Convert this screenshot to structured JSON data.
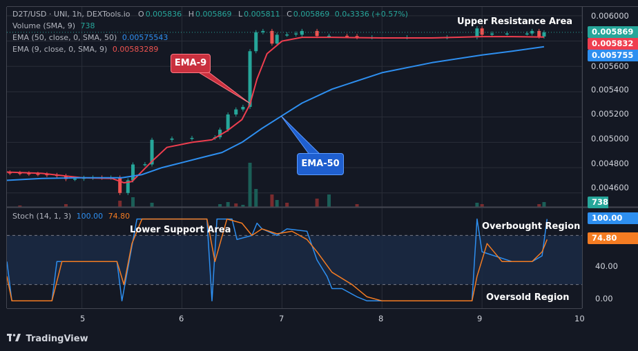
{
  "header": {
    "symbol": "D2T/USD · UNI, 1h, DEXTools.io",
    "o_label": "O",
    "o": "0.005836",
    "h_label": "H",
    "h": "0.005869",
    "l_label": "L",
    "l": "0.005811",
    "c_label": "C",
    "c": "0.005869",
    "chg": "0.0₄3336 (+0.57%)"
  },
  "legend": {
    "volume_label": "Volume (SMA, 9)",
    "volume_value": "738",
    "ema50_label": "EMA (50, close, 0, SMA, 50)",
    "ema50_value": "0.00575543",
    "ema9_label": "EMA (9, close, 0, SMA, 9)",
    "ema9_value": "0.00583289",
    "stoch_label": "Stoch (14, 1, 3)",
    "stoch_k": "100.00",
    "stoch_d": "74.80"
  },
  "annotations": {
    "upper_resistance": "Upper Resistance Area",
    "lower_support": "Lower Support Area",
    "overbought": "Overbought Region",
    "oversold": "Oversold Region",
    "ema9_callout": "EMA-9",
    "ema50_callout": "EMA-50"
  },
  "price_tags": {
    "last": "0.005869",
    "ema9": "0.005832",
    "ema50": "0.005755",
    "volume": "738",
    "stoch_k": "100.00",
    "stoch_d": "74.80"
  },
  "colors": {
    "bg": "#141823",
    "up": "#26a69a",
    "down": "#ef5350",
    "ema9": "#ef3e4f",
    "ema50": "#2e8ff0",
    "stoch_k": "#2e8ff0",
    "stoch_d": "#f57c22",
    "grid": "#2a2e39",
    "text": "#d1d4dc"
  },
  "footer": {
    "brand": "TradingView",
    "logo_icon": "tradingview-logo-icon"
  },
  "chart_data": [
    {
      "type": "candlestick",
      "title": "D2T/USD · UNI, 1h, DEXTools.io",
      "y_ticks": [
        "0.006000",
        "0.005800",
        "0.005600",
        "0.005400",
        "0.005200",
        "0.005000",
        "0.004800",
        "0.004600"
      ],
      "ylim": [
        0.00449,
        0.00607
      ],
      "x_ticks": [
        "5",
        "6",
        "7",
        "8",
        "9",
        "10"
      ],
      "xlim": [
        4.25,
        10.0
      ],
      "candles": [
        {
          "x": 4.28,
          "o": 0.004762,
          "c": 0.004758
        },
        {
          "x": 4.38,
          "o": 0.004758,
          "c": 0.004755
        },
        {
          "x": 4.47,
          "o": 0.004755,
          "c": 0.004751
        },
        {
          "x": 4.56,
          "o": 0.004751,
          "c": 0.004748
        },
        {
          "x": 4.65,
          "o": 0.004748,
          "c": 0.004742
        },
        {
          "x": 4.75,
          "o": 0.004742,
          "c": 0.004735
        },
        {
          "x": 4.84,
          "o": 0.004735,
          "c": 0.00471
        },
        {
          "x": 4.93,
          "o": 0.00471,
          "c": 0.004712
        },
        {
          "x": 5.02,
          "o": 0.004712,
          "c": 0.00472
        },
        {
          "x": 5.11,
          "o": 0.00472,
          "c": 0.004722
        },
        {
          "x": 5.2,
          "o": 0.004722,
          "c": 0.004721
        },
        {
          "x": 5.29,
          "o": 0.004721,
          "c": 0.004722
        },
        {
          "x": 5.38,
          "o": 0.004722,
          "c": 0.0046
        },
        {
          "x": 5.46,
          "o": 0.0046,
          "c": 0.0047
        },
        {
          "x": 5.51,
          "o": 0.0047,
          "c": 0.004825
        },
        {
          "x": 5.63,
          "o": 0.004825,
          "c": 0.004827
        },
        {
          "x": 5.7,
          "o": 0.004825,
          "c": 0.00502
        },
        {
          "x": 5.9,
          "o": 0.00502,
          "c": 0.00503
        },
        {
          "x": 6.1,
          "o": 0.00503,
          "c": 0.005035
        },
        {
          "x": 6.33,
          "o": 0.005035,
          "c": 0.00504
        },
        {
          "x": 6.38,
          "o": 0.00504,
          "c": 0.0051
        },
        {
          "x": 6.46,
          "o": 0.0051,
          "c": 0.00522
        },
        {
          "x": 6.54,
          "o": 0.00522,
          "c": 0.00526
        },
        {
          "x": 6.61,
          "o": 0.00526,
          "c": 0.00528
        },
        {
          "x": 6.68,
          "o": 0.00528,
          "c": 0.00572
        },
        {
          "x": 6.74,
          "o": 0.00572,
          "c": 0.00587
        },
        {
          "x": 6.81,
          "o": 0.00587,
          "c": 0.00588
        },
        {
          "x": 6.9,
          "o": 0.00588,
          "c": 0.00578
        },
        {
          "x": 6.95,
          "o": 0.00578,
          "c": 0.00585
        },
        {
          "x": 7.05,
          "o": 0.00585,
          "c": 0.005852
        },
        {
          "x": 7.14,
          "o": 0.005852,
          "c": 0.00586
        },
        {
          "x": 7.2,
          "o": 0.00585,
          "c": 0.00588
        },
        {
          "x": 7.35,
          "o": 0.00588,
          "c": 0.00584
        },
        {
          "x": 7.47,
          "o": 0.00584,
          "c": 0.005842
        },
        {
          "x": 7.65,
          "o": 0.005842,
          "c": 0.00584
        },
        {
          "x": 7.75,
          "o": 0.00584,
          "c": 0.00583
        },
        {
          "x": 7.9,
          "o": 0.00583,
          "c": 0.00583
        },
        {
          "x": 8.25,
          "o": 0.00583,
          "c": 0.00583
        },
        {
          "x": 8.65,
          "o": 0.00583,
          "c": 0.00583
        },
        {
          "x": 8.95,
          "o": 0.00583,
          "c": 0.0059
        },
        {
          "x": 9.0,
          "o": 0.0059,
          "c": 0.00585
        },
        {
          "x": 9.1,
          "o": 0.00585,
          "c": 0.00586
        },
        {
          "x": 9.25,
          "o": 0.00586,
          "c": 0.00586
        },
        {
          "x": 9.45,
          "o": 0.00586,
          "c": 0.00586
        },
        {
          "x": 9.5,
          "o": 0.00586,
          "c": 0.00588
        },
        {
          "x": 9.57,
          "o": 0.00588,
          "c": 0.005836
        },
        {
          "x": 9.62,
          "o": 0.005836,
          "c": 0.005869
        }
      ],
      "series": [
        {
          "name": "EMA (9, close, 0, SMA, 9)",
          "x": [
            4.25,
            4.6,
            5.0,
            5.3,
            5.42,
            5.5,
            5.7,
            5.85,
            6.1,
            6.3,
            6.45,
            6.6,
            6.68,
            6.75,
            6.85,
            7.0,
            7.2,
            7.5,
            8.0,
            8.5,
            9.0,
            9.3,
            9.62
          ],
          "values": [
            0.004765,
            0.004755,
            0.00472,
            0.004715,
            0.00468,
            0.00469,
            0.00485,
            0.00496,
            0.005,
            0.00502,
            0.00509,
            0.00518,
            0.0053,
            0.0055,
            0.0057,
            0.0058,
            0.00583,
            0.00583,
            0.005825,
            0.005825,
            0.005835,
            0.005835,
            0.005832
          ]
        },
        {
          "name": "EMA (50, close, 0, SMA, 50)",
          "x": [
            4.25,
            4.6,
            5.0,
            5.4,
            5.6,
            5.8,
            6.0,
            6.2,
            6.4,
            6.6,
            6.8,
            7.0,
            7.2,
            7.5,
            8.0,
            8.5,
            9.0,
            9.3,
            9.62
          ],
          "values": [
            0.0047,
            0.004715,
            0.00472,
            0.00472,
            0.004745,
            0.0048,
            0.00484,
            0.00488,
            0.00492,
            0.005,
            0.00511,
            0.00521,
            0.00531,
            0.00542,
            0.00555,
            0.00563,
            0.00569,
            0.00572,
            0.005755
          ]
        }
      ],
      "volume_bars": [
        {
          "x": 4.38,
          "v": 0.1,
          "dir": "down"
        },
        {
          "x": 4.84,
          "v": 0.2,
          "dir": "down"
        },
        {
          "x": 5.38,
          "v": 0.45,
          "dir": "down"
        },
        {
          "x": 5.51,
          "v": 0.7,
          "dir": "up"
        },
        {
          "x": 5.7,
          "v": 0.3,
          "dir": "up"
        },
        {
          "x": 6.38,
          "v": 0.2,
          "dir": "up"
        },
        {
          "x": 6.46,
          "v": 0.35,
          "dir": "up"
        },
        {
          "x": 6.54,
          "v": 0.25,
          "dir": "down"
        },
        {
          "x": 6.61,
          "v": 0.15,
          "dir": "up"
        },
        {
          "x": 6.68,
          "v": 3.2,
          "dir": "up"
        },
        {
          "x": 6.74,
          "v": 1.3,
          "dir": "up"
        },
        {
          "x": 6.9,
          "v": 0.9,
          "dir": "down"
        },
        {
          "x": 6.95,
          "v": 0.5,
          "dir": "up"
        },
        {
          "x": 7.05,
          "v": 0.3,
          "dir": "down"
        },
        {
          "x": 7.35,
          "v": 0.6,
          "dir": "down"
        },
        {
          "x": 7.47,
          "v": 0.9,
          "dir": "up"
        },
        {
          "x": 7.75,
          "v": 0.2,
          "dir": "down"
        },
        {
          "x": 8.95,
          "v": 0.3,
          "dir": "up"
        },
        {
          "x": 9.0,
          "v": 0.2,
          "dir": "down"
        },
        {
          "x": 9.57,
          "v": 0.2,
          "dir": "down"
        },
        {
          "x": 9.62,
          "v": 0.35,
          "dir": "up"
        }
      ]
    },
    {
      "type": "line",
      "title": "Stoch (14, 1, 3)",
      "ylim": [
        -9,
        114
      ],
      "y_ticks": [
        "100.00",
        "40.00",
        "0.00"
      ],
      "bands": [
        80,
        20
      ],
      "series": [
        {
          "name": "%K",
          "x": [
            4.25,
            4.3,
            4.7,
            4.75,
            4.95,
            5.35,
            5.4,
            5.55,
            5.6,
            6.25,
            6.3,
            6.35,
            6.5,
            6.55,
            6.7,
            6.75,
            6.8,
            6.95,
            7.05,
            7.25,
            7.35,
            7.45,
            7.5,
            7.6,
            7.75,
            7.85,
            7.92,
            8.0,
            8.5,
            8.9,
            8.95,
            9.0,
            9.05,
            9.3,
            9.5,
            9.6,
            9.65
          ],
          "values": [
            48,
            0,
            0,
            48,
            48,
            48,
            0,
            100,
            100,
            100,
            0,
            100,
            100,
            75,
            80,
            95,
            88,
            80,
            88,
            85,
            50,
            30,
            15,
            15,
            5,
            0,
            0,
            0,
            0,
            0,
            100,
            60,
            58,
            48,
            48,
            55,
            100
          ]
        },
        {
          "name": "%D",
          "x": [
            4.25,
            4.3,
            4.7,
            4.8,
            5.0,
            5.35,
            5.42,
            5.5,
            5.6,
            6.25,
            6.33,
            6.45,
            6.6,
            6.7,
            6.8,
            6.95,
            7.1,
            7.25,
            7.35,
            7.5,
            7.7,
            7.85,
            8.0,
            8.5,
            8.9,
            8.95,
            9.05,
            9.2,
            9.5,
            9.6,
            9.65
          ],
          "values": [
            30,
            0,
            0,
            48,
            48,
            48,
            20,
            70,
            100,
            100,
            48,
            100,
            95,
            80,
            88,
            82,
            85,
            75,
            60,
            35,
            20,
            5,
            0,
            0,
            0,
            30,
            70,
            48,
            48,
            60,
            75
          ]
        }
      ]
    }
  ]
}
